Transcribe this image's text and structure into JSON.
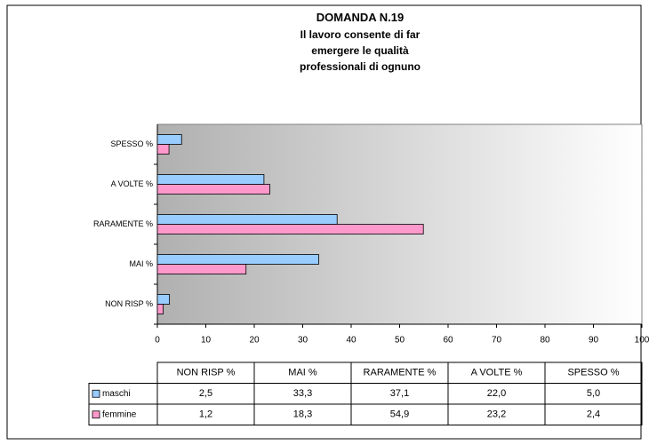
{
  "chart_data": {
    "type": "barh",
    "title": "DOMANDA N.19",
    "subtitle": "Il lavoro consente di far emergere le qualità professionali di ognuno",
    "categories": [
      "NON RISP %",
      "MAI %",
      "RARAMENTE %",
      "A VOLTE %",
      "SPESSO %"
    ],
    "series": [
      {
        "name": "maschi",
        "color": "#99ccff",
        "values": [
          2.5,
          33.3,
          37.1,
          22.0,
          5.0
        ],
        "value_labels": [
          "2,5",
          "33,3",
          "37,1",
          "22,0",
          "5,0"
        ]
      },
      {
        "name": "femmine",
        "color": "#ff99cc",
        "values": [
          1.2,
          18.3,
          54.9,
          23.2,
          2.4
        ],
        "value_labels": [
          "1,2",
          "18,3",
          "54,9",
          "23,2",
          "2,4"
        ]
      }
    ],
    "xlim": [
      0,
      100
    ],
    "xticks": [
      0,
      10,
      20,
      30,
      40,
      50,
      60,
      70,
      80,
      90,
      100
    ]
  }
}
